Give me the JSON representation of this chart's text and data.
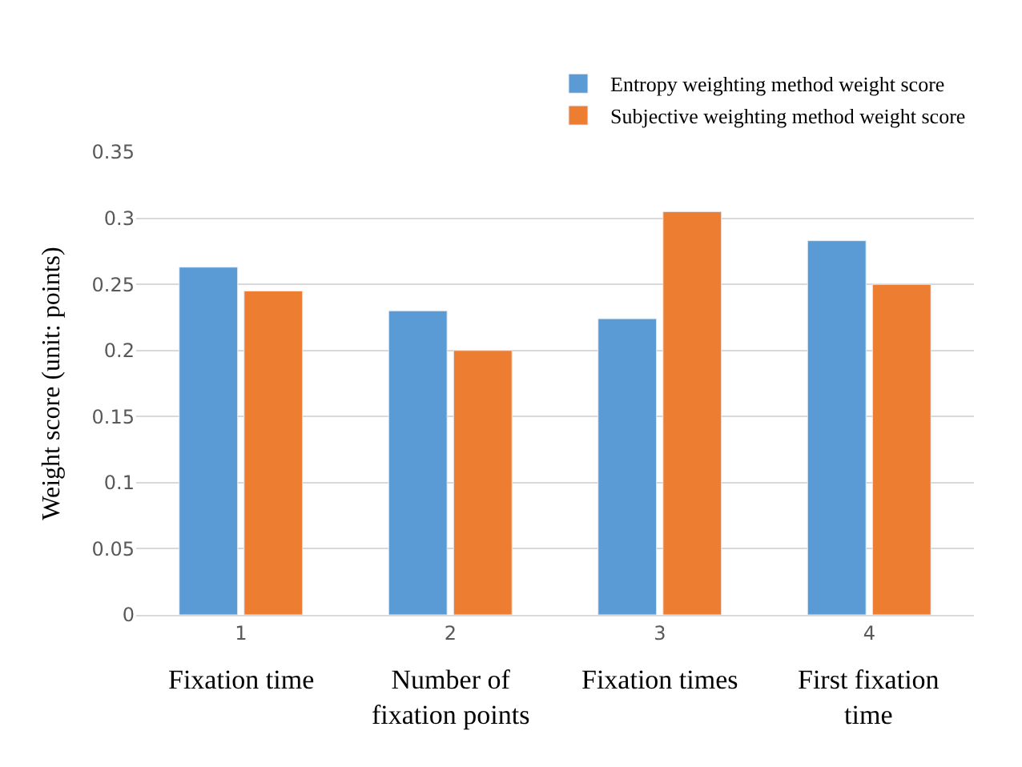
{
  "chart_data": {
    "type": "bar",
    "ylabel": "Weight score (unit: points)",
    "categories": [
      "1",
      "2",
      "3",
      "4"
    ],
    "series": [
      {
        "name": "Entropy weighting method weight score",
        "color": "#5b9bd5",
        "values": [
          0.263,
          0.23,
          0.224,
          0.283
        ]
      },
      {
        "name": "Subjective weighting method weight score",
        "color": "#ed7d31",
        "values": [
          0.245,
          0.2,
          0.305,
          0.25
        ]
      }
    ],
    "ylim": [
      0,
      0.35
    ],
    "yticks": [
      0,
      0.05,
      0.1,
      0.15,
      0.2,
      0.25,
      0.3,
      0.35
    ],
    "grid": "y",
    "legend": "top right",
    "annotations": [
      "Fixation time",
      "Number of fixation points",
      "Fixation times",
      "First fixation time"
    ]
  }
}
